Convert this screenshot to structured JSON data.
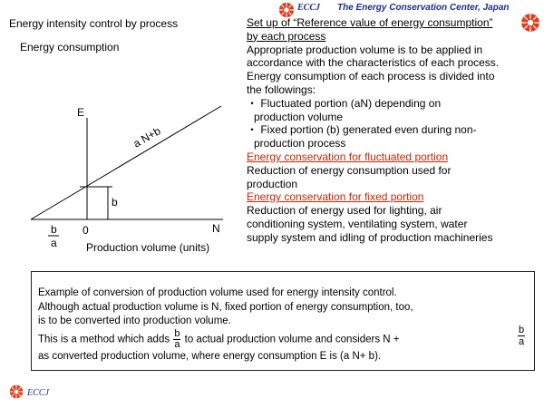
{
  "header": {
    "brand": "ECCJ",
    "organization": "The Energy Conservation Center, Japan"
  },
  "slide_title": "Energy intensity control by process",
  "diagram": {
    "title": "Energy consumption",
    "y_axis_label": "E",
    "x_axis_label": "Production volume (units)",
    "origin_label": "0",
    "x_end_label": "N",
    "line_label": "a N+b",
    "intercept_label": "b",
    "frac_num": "b",
    "frac_den": "a"
  },
  "right_text": {
    "heading_1": "Set up of “Reference value of  energy consumption”",
    "heading_2": "by each process",
    "lines": [
      "Appropriate production volume is to be applied in",
      "accordance with the characteristics of each process.",
      "Energy consumption of each process is divided into",
      "the followings:"
    ],
    "bullet_1a": "・ Fluctuated portion (aN) depending on",
    "bullet_1b": "production volume",
    "bullet_2a": "・ Fixed portion (b) generated even during non-",
    "bullet_2b": "production process",
    "red_heading_1": "Energy conservation for fluctuated portion",
    "fluct_1": "Reduction of energy consumption used for",
    "fluct_2": "production",
    "red_heading_2": "Energy conservation for fixed portion",
    "fixed_1": "Reduction of energy used for lighting, air",
    "fixed_2": "conditioning system, ventilating system, water",
    "fixed_3": "supply system and idling of production machineries"
  },
  "example": {
    "line_1": "Example of conversion of production volume used for energy intensity control.",
    "line_2": "Although actual production volume is N, fixed portion of energy consumption, too,",
    "line_3": "is to be converted into production volume.",
    "line_4_pre": "This is a method which adds",
    "line_4_post": "to actual production volume and considers N +",
    "line_5": "as converted production volume, where energy consumption E is (a N+ b).",
    "frac_num": "b",
    "frac_den": "a"
  },
  "footer": {
    "brand": "ECCJ"
  }
}
